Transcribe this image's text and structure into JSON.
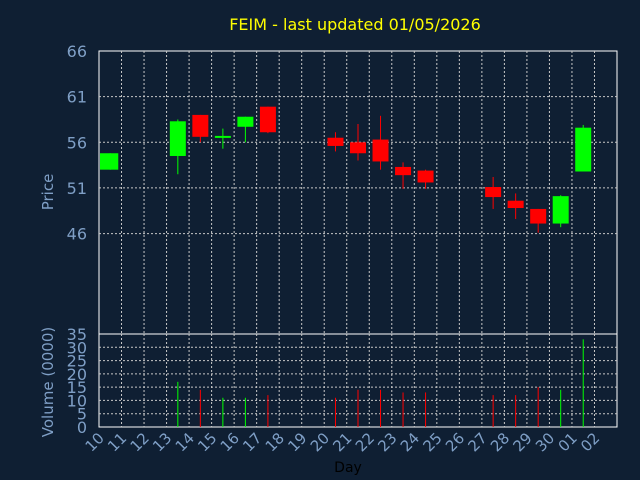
{
  "chart_data": {
    "type": "candlestick",
    "title": "FEIM - last updated 01/05/2026",
    "xlabel": "Day",
    "price_panel": {
      "ylabel": "Price",
      "ylim": [
        35,
        66
      ],
      "yticks": [
        46,
        51,
        56,
        61,
        66
      ]
    },
    "volume_panel": {
      "ylabel": "Volume (0000)",
      "ylim": [
        0,
        35
      ],
      "yticks": [
        0,
        5,
        10,
        15,
        20,
        25,
        30,
        35
      ]
    },
    "x_tick_labels": [
      "10",
      "11",
      "12",
      "13",
      "14",
      "15",
      "16",
      "17",
      "18",
      "19",
      "20",
      "21",
      "22",
      "23",
      "24",
      "25",
      "26",
      "27",
      "28",
      "29",
      "30",
      "01",
      "02"
    ],
    "colors": {
      "up": "#00ff00",
      "down": "#ff0000"
    },
    "candles": [
      {
        "i": 0,
        "open": 53.0,
        "high": 54.8,
        "low": 53.0,
        "close": 54.8,
        "volume": 0
      },
      {
        "i": 3,
        "open": 54.5,
        "high": 58.5,
        "low": 52.5,
        "close": 58.3,
        "volume": 17
      },
      {
        "i": 4,
        "open": 59.0,
        "high": 59.0,
        "low": 56.0,
        "close": 56.6,
        "volume": 14
      },
      {
        "i": 5,
        "open": 56.5,
        "high": 57.5,
        "low": 55.3,
        "close": 56.7,
        "volume": 11
      },
      {
        "i": 6,
        "open": 57.7,
        "high": 58.8,
        "low": 56.0,
        "close": 58.8,
        "volume": 11
      },
      {
        "i": 7,
        "open": 59.9,
        "high": 59.9,
        "low": 57.0,
        "close": 57.1,
        "volume": 12
      },
      {
        "i": 10,
        "open": 56.5,
        "high": 57.1,
        "low": 55.0,
        "close": 55.6,
        "volume": 11
      },
      {
        "i": 11,
        "open": 56.0,
        "high": 58.0,
        "low": 54.0,
        "close": 54.8,
        "volume": 14
      },
      {
        "i": 12,
        "open": 56.3,
        "high": 58.9,
        "low": 53.0,
        "close": 53.9,
        "volume": 14
      },
      {
        "i": 13,
        "open": 53.3,
        "high": 53.8,
        "low": 50.9,
        "close": 52.4,
        "volume": 13
      },
      {
        "i": 14,
        "open": 52.9,
        "high": 53.0,
        "low": 50.9,
        "close": 51.6,
        "volume": 13
      },
      {
        "i": 17,
        "open": 51.1,
        "high": 52.2,
        "low": 48.7,
        "close": 50.0,
        "volume": 12
      },
      {
        "i": 18,
        "open": 49.6,
        "high": 50.4,
        "low": 47.6,
        "close": 48.8,
        "volume": 12
      },
      {
        "i": 19,
        "open": 48.7,
        "high": 48.7,
        "low": 46.1,
        "close": 47.1,
        "volume": 15
      },
      {
        "i": 20,
        "open": 47.1,
        "high": 50.2,
        "low": 46.7,
        "close": 50.1,
        "volume": 14
      },
      {
        "i": 21,
        "open": 52.8,
        "high": 57.9,
        "low": 52.8,
        "close": 57.6,
        "volume": 33
      }
    ]
  }
}
